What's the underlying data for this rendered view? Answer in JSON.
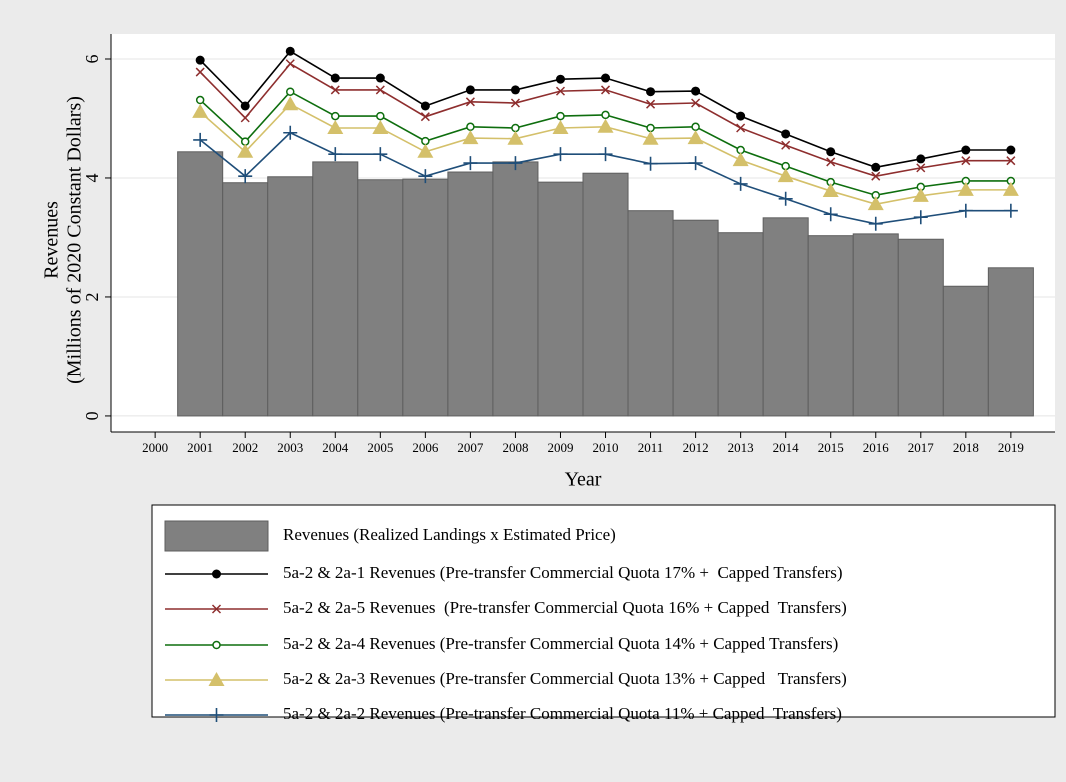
{
  "chart_data": {
    "type": "bar",
    "y_title": [
      "Revenues",
      "(Millions of 2020 Constant Dollars)"
    ],
    "x_title": "Year",
    "x": [
      2001,
      2002,
      2003,
      2004,
      2005,
      2006,
      2007,
      2008,
      2009,
      2010,
      2011,
      2012,
      2013,
      2014,
      2015,
      2016,
      2017,
      2018,
      2019
    ],
    "xlim": [
      1999.02,
      2019.98
    ],
    "xticks": [
      2000,
      2001,
      2002,
      2003,
      2004,
      2005,
      2006,
      2007,
      2008,
      2009,
      2010,
      2011,
      2012,
      2013,
      2014,
      2015,
      2016,
      2017,
      2018,
      2019
    ],
    "ylim": [
      -0.27,
      6.42
    ],
    "yticks": [
      0,
      2,
      4,
      6
    ],
    "grid": true,
    "series": [
      {
        "name": "Revenues (Realized Landings x Estimated Price)",
        "type": "bar",
        "color": "#808080",
        "values": [
          4.44,
          3.92,
          4.02,
          4.27,
          3.97,
          3.98,
          4.1,
          4.27,
          3.93,
          4.08,
          3.45,
          3.29,
          3.08,
          3.33,
          3.03,
          3.06,
          2.97,
          2.18,
          2.49
        ]
      },
      {
        "name": "5a-2 & 2a-1 Revenues (Pre-transfer Commercial Quota 17% +  Capped Transfers)",
        "type": "line",
        "marker": "circle",
        "color": "#000000",
        "values": [
          5.98,
          5.21,
          6.13,
          5.68,
          5.68,
          5.21,
          5.48,
          5.48,
          5.66,
          5.68,
          5.45,
          5.46,
          5.04,
          4.74,
          4.44,
          4.18,
          4.32,
          4.47,
          4.47
        ]
      },
      {
        "name": "5a-2 & 2a-5 Revenues  (Pre-transfer Commercial Quota 16% + Capped  Transfers)",
        "type": "line",
        "marker": "x",
        "color": "#8e2e2e",
        "values": [
          5.78,
          5.01,
          5.92,
          5.48,
          5.48,
          5.03,
          5.28,
          5.26,
          5.46,
          5.48,
          5.24,
          5.26,
          4.84,
          4.55,
          4.27,
          4.03,
          4.17,
          4.29,
          4.29
        ]
      },
      {
        "name": "5a-2 & 2a-4 Revenues (Pre-transfer Commercial Quota 14% + Capped Transfers)",
        "type": "line",
        "marker": "hollow-circle",
        "color": "#0e6e0e",
        "values": [
          5.31,
          4.61,
          5.45,
          5.04,
          5.04,
          4.62,
          4.86,
          4.84,
          5.04,
          5.06,
          4.84,
          4.86,
          4.47,
          4.2,
          3.93,
          3.71,
          3.85,
          3.95,
          3.95
        ]
      },
      {
        "name": "5a-2 & 2a-3 Revenues (Pre-transfer Commercial Quota 13% + Capped   Transfers)",
        "type": "line",
        "marker": "triangle",
        "color": "#d4c06a",
        "values": [
          5.11,
          4.44,
          5.24,
          4.84,
          4.84,
          4.44,
          4.67,
          4.66,
          4.84,
          4.86,
          4.66,
          4.67,
          4.3,
          4.03,
          3.78,
          3.56,
          3.7,
          3.8,
          3.8
        ]
      },
      {
        "name": "5a-2 & 2a-2 Revenues (Pre-transfer Commercial Quota 11% + Capped  Transfers)",
        "type": "line",
        "marker": "plus",
        "color": "#1f4e79",
        "values": [
          4.64,
          4.03,
          4.76,
          4.4,
          4.4,
          4.03,
          4.25,
          4.25,
          4.4,
          4.4,
          4.24,
          4.25,
          3.9,
          3.65,
          3.39,
          3.23,
          3.34,
          3.45,
          3.45
        ]
      }
    ]
  }
}
